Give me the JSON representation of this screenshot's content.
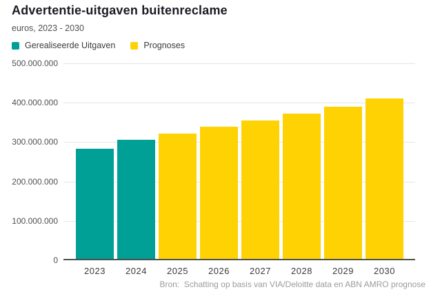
{
  "chart_data": {
    "type": "bar",
    "title": "Advertentie-uitgaven buitenreclame",
    "subtitle": "euros, 2023 - 2030",
    "categories": [
      "2023",
      "2024",
      "2025",
      "2026",
      "2027",
      "2028",
      "2029",
      "2030"
    ],
    "series": [
      {
        "name": "Gerealiseerde Uitgaven",
        "color": "#00A096",
        "values": [
          280000000,
          302000000,
          null,
          null,
          null,
          null,
          null,
          null
        ]
      },
      {
        "name": "Prognoses",
        "color": "#FFD203",
        "values": [
          null,
          null,
          318000000,
          335000000,
          352000000,
          369000000,
          387000000,
          407000000
        ]
      }
    ],
    "xlabel": "",
    "ylabel": "",
    "ylim": [
      0,
      500000000
    ],
    "yticks": {
      "values": [
        0,
        100000000,
        200000000,
        300000000,
        400000000,
        500000000
      ],
      "labels": [
        "0",
        "100.000.000",
        "200.000.000",
        "300.000.000",
        "400.000.000",
        "500.000.000"
      ]
    },
    "grid": "horizontal",
    "legend_position": "top-left",
    "source": "Bron:  Schatting op basis van VIA/Deloitte data en ABN AMRO prognose"
  },
  "colors": {
    "title_text": "#1a1a24",
    "axis_text": "#4f4f4f",
    "gridline": "#e5e5e5",
    "axis_line": "#4d4d4d",
    "source_text": "#9b9b9b",
    "background": "#ffffff"
  }
}
